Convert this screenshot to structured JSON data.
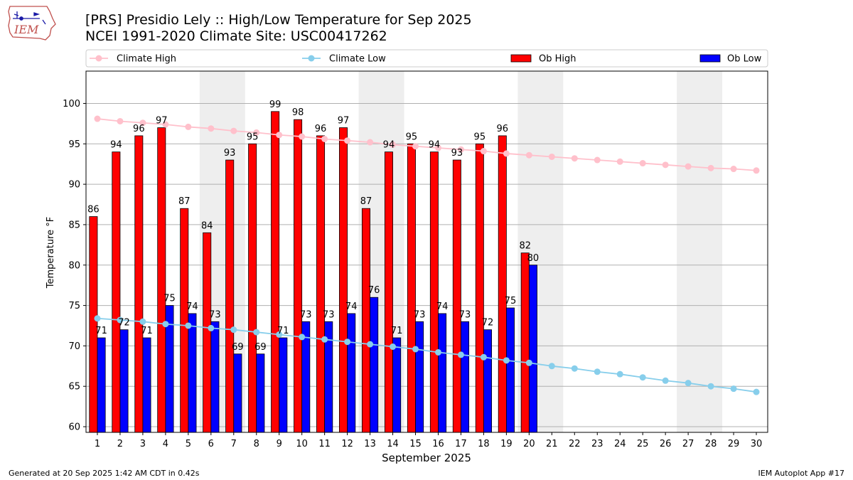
{
  "header": {
    "title_line1": "[PRS] Presidio Lely :: High/Low Temperature for Sep 2025",
    "title_line2": "NCEI 1991-2020 Climate Site: USC00417262",
    "logo_text": "IEM"
  },
  "footer": {
    "left": "Generated at 20 Sep 2025 1:42 AM CDT in 0.42s",
    "right": "IEM Autoplot App #17"
  },
  "chart_data": {
    "type": "bar",
    "title": "[PRS] Presidio Lely :: High/Low Temperature for Sep 2025",
    "subtitle": "NCEI 1991-2020 Climate Site: USC00417262",
    "xlabel": "September 2025",
    "ylabel": "Temperature °F",
    "ylim": [
      59.3,
      104.0
    ],
    "yticks": [
      60,
      65,
      70,
      75,
      80,
      85,
      90,
      95,
      100
    ],
    "grid": "horizontal",
    "legend": "top, above plot",
    "days": [
      1,
      2,
      3,
      4,
      5,
      6,
      7,
      8,
      9,
      10,
      11,
      12,
      13,
      14,
      15,
      16,
      17,
      18,
      19,
      20,
      21,
      22,
      23,
      24,
      25,
      26,
      27,
      28,
      29,
      30
    ],
    "weekend_shading": [
      [
        6,
        7
      ],
      [
        13,
        14
      ],
      [
        20,
        21
      ],
      [
        27,
        28
      ]
    ],
    "shade_color": "#eeeeee",
    "series": [
      {
        "name": "Climate High",
        "kind": "line",
        "color": "#ffc0cb",
        "values": [
          98.1,
          97.8,
          97.6,
          97.4,
          97.1,
          96.9,
          96.6,
          96.4,
          96.1,
          95.9,
          95.6,
          95.4,
          95.2,
          94.9,
          94.7,
          94.5,
          94.3,
          94.1,
          93.8,
          93.6,
          93.4,
          93.2,
          93.0,
          92.8,
          92.6,
          92.4,
          92.2,
          92.0,
          91.9,
          91.7
        ]
      },
      {
        "name": "Climate Low",
        "kind": "line",
        "color": "#87ceeb",
        "values": [
          73.4,
          73.2,
          73.0,
          72.7,
          72.5,
          72.2,
          72.0,
          71.7,
          71.4,
          71.1,
          70.8,
          70.5,
          70.2,
          69.9,
          69.6,
          69.2,
          68.9,
          68.6,
          68.2,
          67.9,
          67.5,
          67.2,
          66.8,
          66.5,
          66.1,
          65.7,
          65.4,
          65.0,
          64.7,
          64.3
        ]
      },
      {
        "name": "Ob High",
        "kind": "bar",
        "color": "#ff0000",
        "values": [
          86,
          94,
          96,
          97,
          87,
          84,
          93,
          95,
          99,
          98,
          96,
          97,
          87,
          94,
          95,
          94,
          93,
          95,
          96,
          81.5
        ],
        "labels": [
          "86",
          "94",
          "96",
          "97",
          "87",
          "84",
          "93",
          "95",
          "99",
          "98",
          "96",
          "97",
          "87",
          "94",
          "95",
          "94",
          "93",
          "95",
          "96",
          "82"
        ]
      },
      {
        "name": "Ob Low",
        "kind": "bar",
        "color": "#0000ff",
        "values": [
          71,
          72,
          71,
          75,
          74,
          73,
          69,
          69,
          71,
          73,
          73,
          74,
          76,
          71,
          73,
          74,
          73,
          72,
          74.7,
          80
        ],
        "labels": [
          "71",
          "72",
          "71",
          "75",
          "74",
          "73",
          "69",
          "69",
          "71",
          "73",
          "73",
          "74",
          "76",
          "71",
          "73",
          "74",
          "73",
          "72",
          "75",
          "80"
        ]
      }
    ]
  }
}
